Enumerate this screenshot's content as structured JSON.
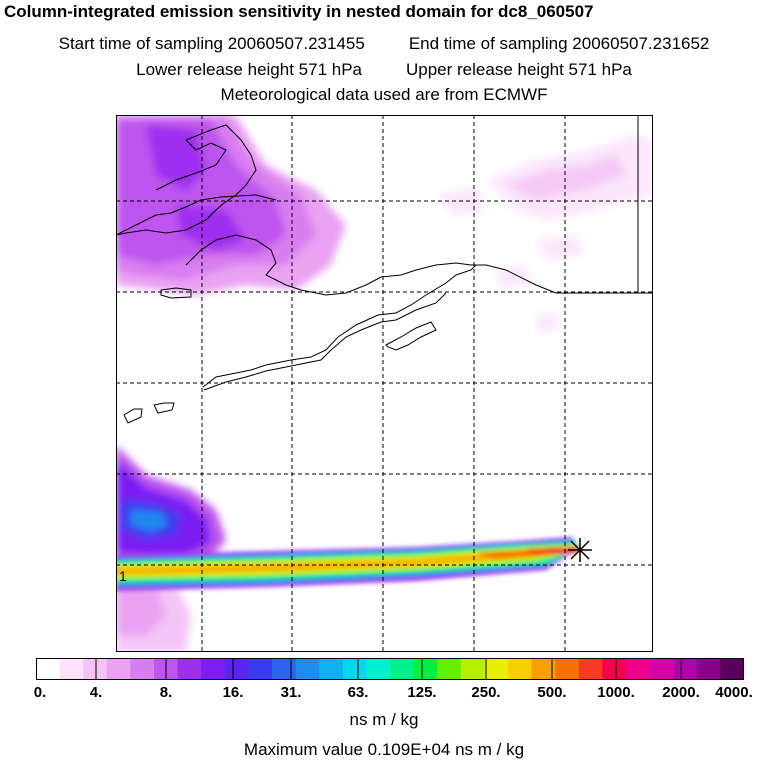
{
  "header": {
    "title": "Column-integrated emission sensitivity in nested domain for dc8_060507",
    "start_label": "Start time of sampling 20060507.231455",
    "end_label": "End time of sampling 20060507.231652",
    "lower_label": "Lower release height  571 hPa",
    "upper_label": "Upper release height  571 hPa",
    "met_label": "Meteorological data used are from ECMWF"
  },
  "map": {
    "release_marker": "1"
  },
  "legend": {
    "unit": "ns m / kg",
    "max_value": "Maximum value  0.109E+04 ns m / kg",
    "ticks": [
      "0.",
      "4.",
      "8.",
      "16.",
      "31.",
      "63.",
      "125.",
      "250.",
      "500.",
      "1000.",
      "2000.",
      "4000."
    ],
    "colors": [
      "#ffffff",
      "#fbe4fb",
      "#f4c4f6",
      "#eaa2f2",
      "#d87ef0",
      "#bd55ee",
      "#9e2ff0",
      "#7a1ef2",
      "#5a24f2",
      "#3b3cf0",
      "#2d63f0",
      "#1d8cf0",
      "#0fb2f0",
      "#00d8f0",
      "#00f0d0",
      "#00f08c",
      "#00f040",
      "#60f000",
      "#b4f000",
      "#e8f000",
      "#f8d000",
      "#f8a000",
      "#f87000",
      "#f83a20",
      "#f8004c",
      "#f00088",
      "#d800a8",
      "#b000a8",
      "#880088",
      "#5a005a"
    ]
  }
}
